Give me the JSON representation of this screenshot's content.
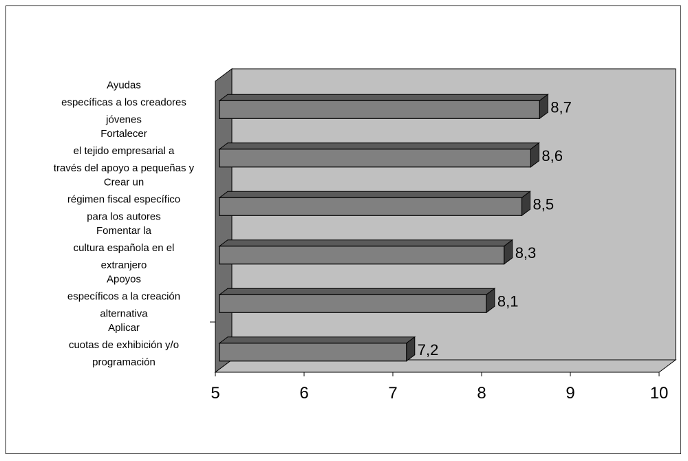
{
  "chart_data": {
    "type": "bar",
    "orientation": "horizontal",
    "style": "3d",
    "categories": [
      [
        "Ayudas",
        "específicas a los creadores",
        "jóvenes"
      ],
      [
        "Fortalecer",
        "el tejido empresarial a",
        "través del apoyo a pequeñas y"
      ],
      [
        "Crear un",
        "régimen fiscal específico",
        "para los autores"
      ],
      [
        "Fomentar la",
        "cultura española en el",
        "extranjero"
      ],
      [
        "Apoyos",
        "específicos a la creación",
        "alternativa"
      ],
      [
        "Aplicar",
        "cuotas de exhibición y/o",
        "programación"
      ]
    ],
    "values": [
      8.7,
      8.6,
      8.5,
      8.3,
      8.1,
      7.2
    ],
    "value_labels": [
      "8,7",
      "8,6",
      "8,5",
      "8,3",
      "8,1",
      "7,2"
    ],
    "xlim": [
      5,
      10
    ],
    "xticks": [
      5,
      6,
      7,
      8,
      9,
      10
    ],
    "xtick_labels": [
      "5",
      "6",
      "7",
      "8",
      "9",
      "10"
    ],
    "title": "",
    "xlabel": "",
    "ylabel": "",
    "grid": false,
    "legend": "none",
    "colors": {
      "bar_front": "#808080",
      "bar_top": "#5a5a5a",
      "bar_side": "#3a3a3a",
      "back_wall": "#c0c0c0",
      "floor": "#c0c0c0",
      "side_wall": "#6e6e6e"
    }
  }
}
